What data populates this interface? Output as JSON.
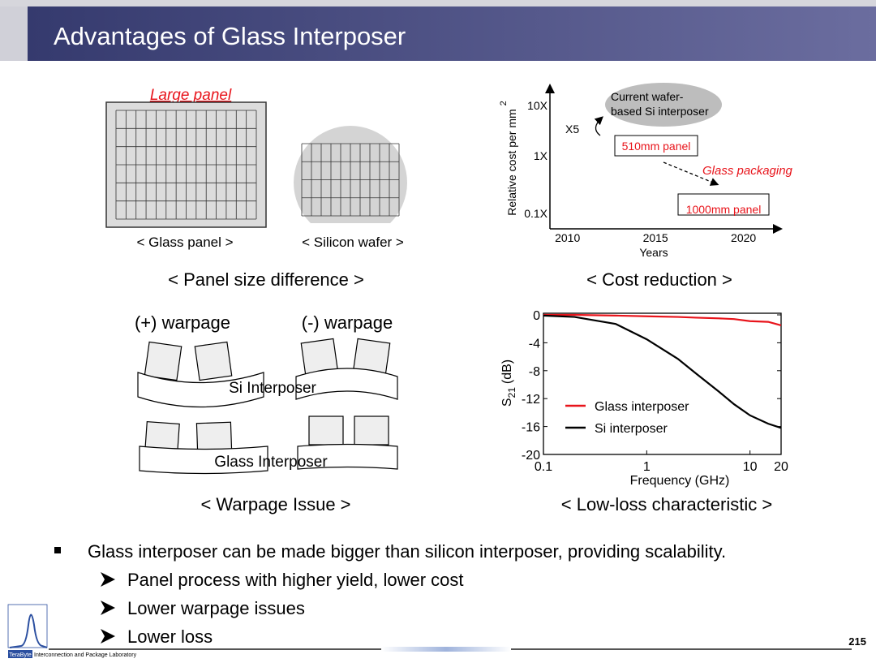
{
  "header": {
    "title": "Advantages of Glass Interposer"
  },
  "panel_size": {
    "large_panel": "Large panel",
    "glass_panel": "< Glass panel >",
    "silicon_wafer": "< Silicon wafer >",
    "caption": "< Panel size difference >"
  },
  "cost_reduction": {
    "y_label": "Relative cost per mm",
    "y_label_sup": "2",
    "ytick_labels": [
      "10X",
      "1X",
      "0.1X"
    ],
    "xlim": [
      2009,
      2022
    ],
    "xticks": [
      2010,
      2015,
      2020
    ],
    "x_label": "Years",
    "current_label": [
      "Current wafer-",
      "based Si interposer"
    ],
    "ratio_label": "X5",
    "panel_510": "510mm panel",
    "glass_packaging": "Glass packaging",
    "panel_1000": "1000mm panel",
    "caption": "< Cost reduction >"
  },
  "warpage": {
    "positive": "(+) warpage",
    "negative": "(-) warpage",
    "si_interposer": "Si Interposer",
    "glass_interposer": "Glass Interposer",
    "caption": "< Warpage Issue >"
  },
  "chart_data": {
    "type": "line",
    "log_x": true,
    "x": [
      0.1,
      0.2,
      0.5,
      1,
      2,
      3,
      5,
      7,
      10,
      15,
      20
    ],
    "xlim": [
      0.1,
      20
    ],
    "xticks": [
      0.1,
      1,
      10,
      20
    ],
    "x_label": "Frequency (GHz)",
    "ylim": [
      -20,
      0
    ],
    "yticks": [
      0,
      -4,
      -8,
      -12,
      -16,
      -20
    ],
    "y_label": "S",
    "y_label_sub": "21",
    "y_label_unit": "(dB)",
    "series": [
      {
        "name": "Glass interposer",
        "color": "#e8141b",
        "values": [
          0,
          0,
          -0.1,
          -0.2,
          -0.3,
          -0.4,
          -0.5,
          -0.6,
          -0.9,
          -1.0,
          -1.5
        ]
      },
      {
        "name": "Si interposer",
        "color": "#000000",
        "values": [
          -0.1,
          -0.3,
          -1.3,
          -3.5,
          -6.3,
          -8.4,
          -11,
          -12.8,
          -14.4,
          -15.6,
          -16.2
        ]
      }
    ],
    "caption": "< Low-loss characteristic >"
  },
  "bullets": {
    "main": "Glass interposer can be made bigger than silicon interposer, providing scalability.",
    "sub": [
      "Panel process with higher yield, lower cost",
      "Lower warpage issues",
      "Lower loss"
    ]
  },
  "footer": {
    "page": "215",
    "lab_short": "TeraByte",
    "lab_name": "Interconnection and Package Laboratory"
  }
}
